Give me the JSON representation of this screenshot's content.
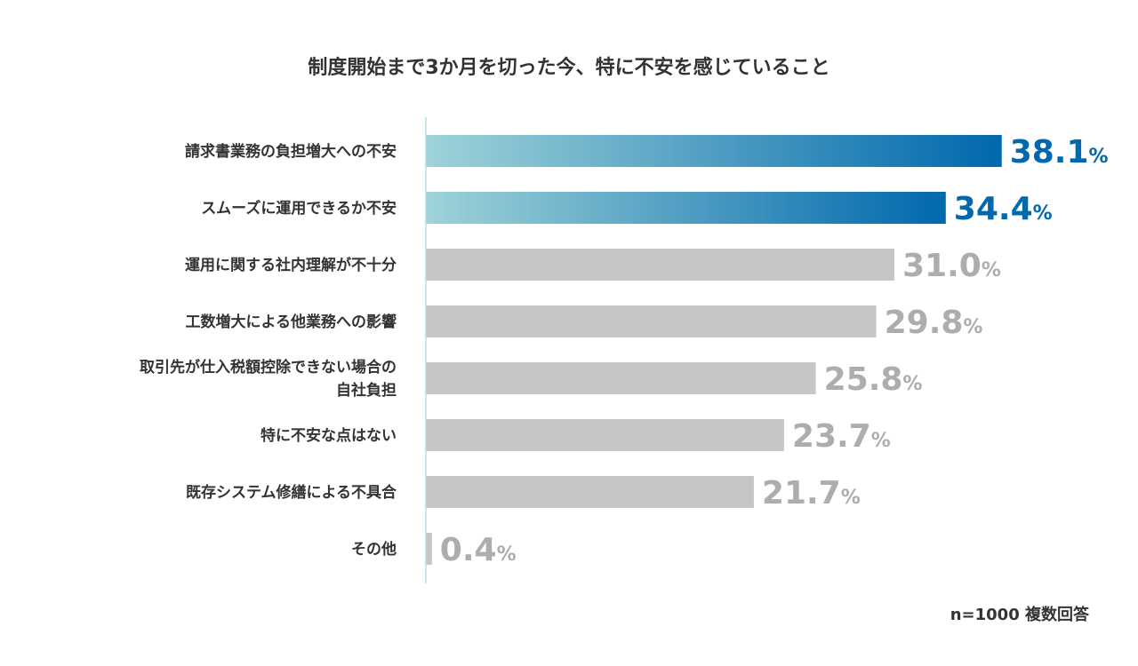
{
  "chart_data": {
    "type": "bar",
    "orientation": "horizontal",
    "title": "制度開始まで3か月を切った今、特に不安を感じていること",
    "categories": [
      [
        "請求書業務の負担増大への不安"
      ],
      [
        "スムーズに運用できるか不安"
      ],
      [
        "運用に関する社内理解が不十分"
      ],
      [
        "工数増大による他業務への影響"
      ],
      [
        "取引先が仕入税額控除できない場合の",
        "自社負担"
      ],
      [
        "特に不安な点はない"
      ],
      [
        "既存システム修繕による不具合"
      ],
      [
        "その他"
      ]
    ],
    "values": [
      38.1,
      34.4,
      31.0,
      29.8,
      25.8,
      23.7,
      21.7,
      0.4
    ],
    "value_labels": [
      "38.1",
      "34.4",
      "31.0",
      "29.8",
      "25.8",
      "23.7",
      "21.7",
      "0.4"
    ],
    "value_suffix": "%",
    "highlight_count": 2,
    "xlim": [
      0,
      40
    ],
    "grid": false,
    "note": "n=1000 複数回答",
    "colors": {
      "highlight_start": "#9fd3d8",
      "highlight_end": "#0068ad",
      "highlight_text": "#0068ad",
      "other_bar": "#c6c6c6",
      "other_text": "#adadad",
      "axis": "#b8dbe3"
    }
  }
}
